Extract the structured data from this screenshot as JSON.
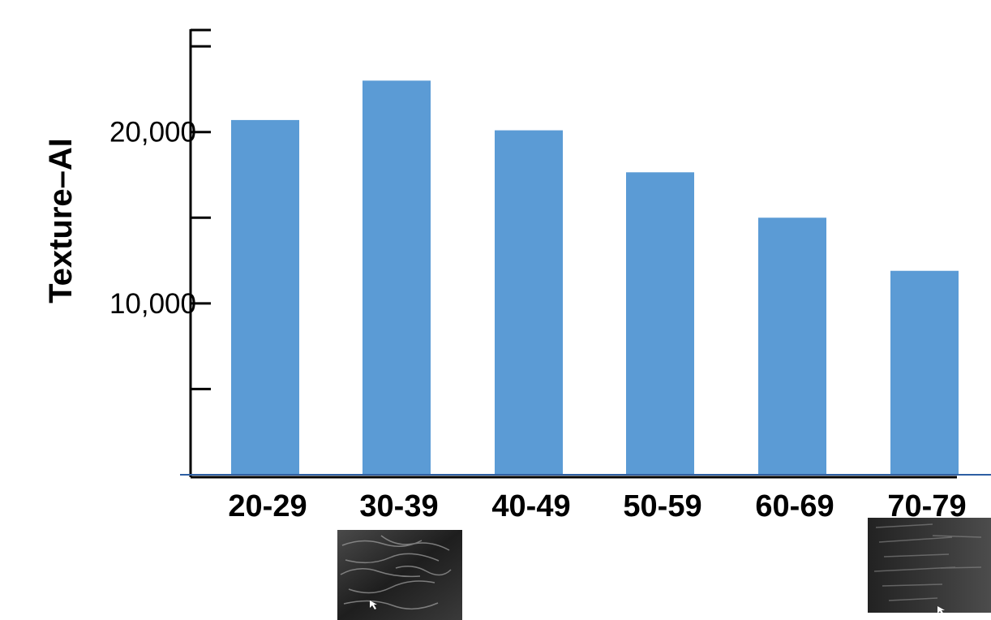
{
  "chart_data": {
    "type": "bar",
    "ylabel": "Texture–AI",
    "categories": [
      "20-29",
      "30-39",
      "40-49",
      "50-59",
      "60-69",
      "70-79"
    ],
    "series": [
      {
        "values": [
          20700,
          23000,
          20100,
          17650,
          15000,
          11900
        ]
      }
    ],
    "ylim": [
      0,
      26000
    ],
    "yticks": [
      5000,
      10000,
      15000,
      20000,
      25000
    ],
    "ytick_labels": {
      "10000": "10,000",
      "20000": "20,000"
    },
    "grid": false,
    "bar_color": "#5b9bd5",
    "axis_color": "#000000",
    "baseline_color": "#2e5fa3"
  },
  "thumbnails": [
    {
      "name": "ultrasound-thumbnail-young",
      "under_category": "30-39"
    },
    {
      "name": "ultrasound-thumbnail-old",
      "under_category": "70-79"
    }
  ]
}
